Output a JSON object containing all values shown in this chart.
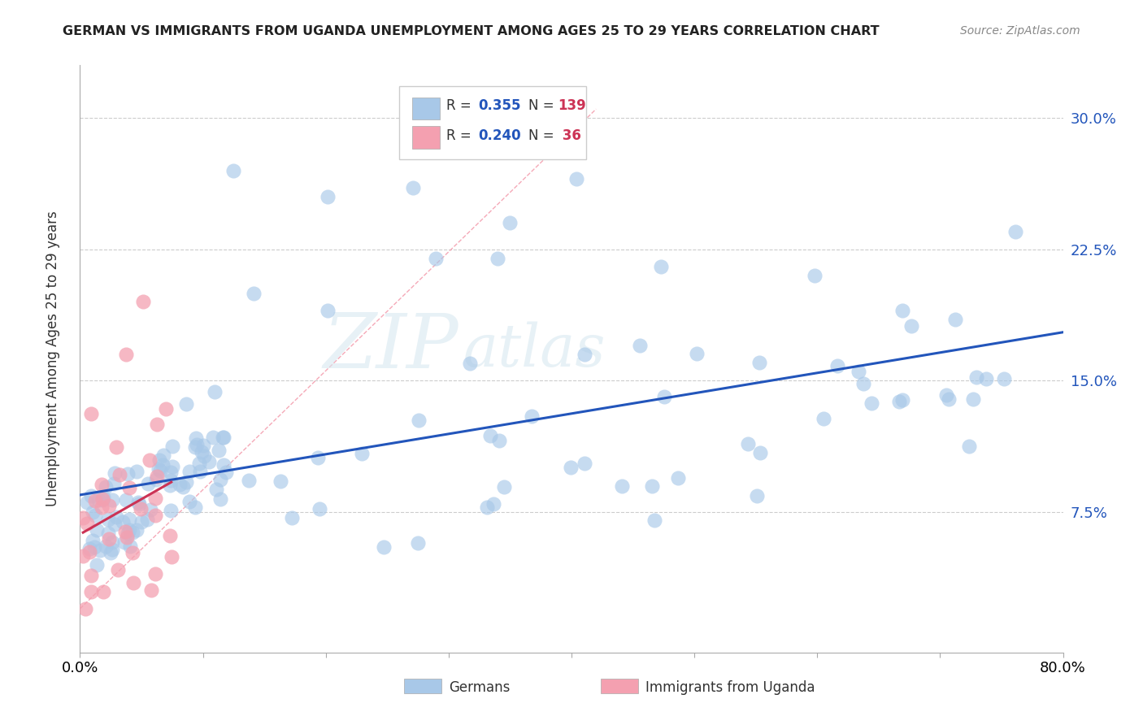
{
  "title": "GERMAN VS IMMIGRANTS FROM UGANDA UNEMPLOYMENT AMONG AGES 25 TO 29 YEARS CORRELATION CHART",
  "source": "Source: ZipAtlas.com",
  "ylabel": "Unemployment Among Ages 25 to 29 years",
  "xlim": [
    0.0,
    0.8
  ],
  "ylim": [
    -0.005,
    0.33
  ],
  "ytick_positions": [
    0.075,
    0.15,
    0.225,
    0.3
  ],
  "ytick_labels": [
    "7.5%",
    "15.0%",
    "22.5%",
    "30.0%"
  ],
  "german_color": "#a8c8e8",
  "uganda_color": "#f4a0b0",
  "german_line_color": "#2255bb",
  "uganda_line_color": "#cc3355",
  "watermark_zip": "ZIP",
  "watermark_atlas": "atlas",
  "background_color": "#ffffff",
  "grid_color": "#cccccc",
  "seed_german": 42,
  "seed_uganda": 99
}
